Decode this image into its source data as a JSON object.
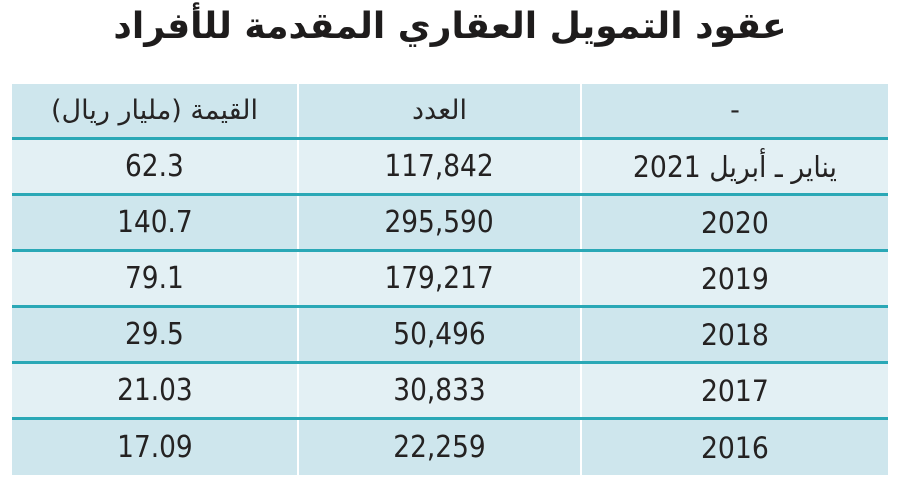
{
  "title": "عقود التمويل العقاري المقدمة للأفراد",
  "table": {
    "columns": [
      {
        "key": "period",
        "label": "-"
      },
      {
        "key": "count",
        "label": "العدد"
      },
      {
        "key": "value",
        "label": "القيمة (مليار ريال)"
      }
    ],
    "rows": [
      {
        "period": "يناير ـ أبريل 2021",
        "count": "117,842",
        "value": "62.3"
      },
      {
        "period": "2020",
        "count": "295,590",
        "value": "140.7"
      },
      {
        "period": "2019",
        "count": "179,217",
        "value": "79.1"
      },
      {
        "period": "2018",
        "count": "50,496",
        "value": "29.5"
      },
      {
        "period": "2017",
        "count": "30,833",
        "value": "21.03"
      },
      {
        "period": "2016",
        "count": "22,259",
        "value": "17.09"
      }
    ]
  },
  "colors": {
    "row_dark_bg": "#cee6ed",
    "row_light_bg": "#e3f0f4",
    "separator_teal": "#2aa8b6",
    "column_divider": "#ffffff",
    "text": "#242222",
    "page_bg": "#ffffff"
  },
  "chart_data": {
    "type": "table",
    "title": "عقود التمويل العقاري المقدمة للأفراد",
    "columns": [
      "-",
      "العدد",
      "القيمة (مليار ريال)"
    ],
    "categories": [
      "يناير ـ أبريل 2021",
      "2020",
      "2019",
      "2018",
      "2017",
      "2016"
    ],
    "series": [
      {
        "name": "العدد",
        "values": [
          117842,
          295590,
          179217,
          50496,
          30833,
          22259
        ]
      },
      {
        "name": "القيمة (مليار ريال)",
        "values": [
          62.3,
          140.7,
          79.1,
          29.5,
          21.03,
          17.09
        ]
      }
    ],
    "layout": {
      "direction": "rtl",
      "row_striping": true,
      "legend_position": "none"
    }
  }
}
